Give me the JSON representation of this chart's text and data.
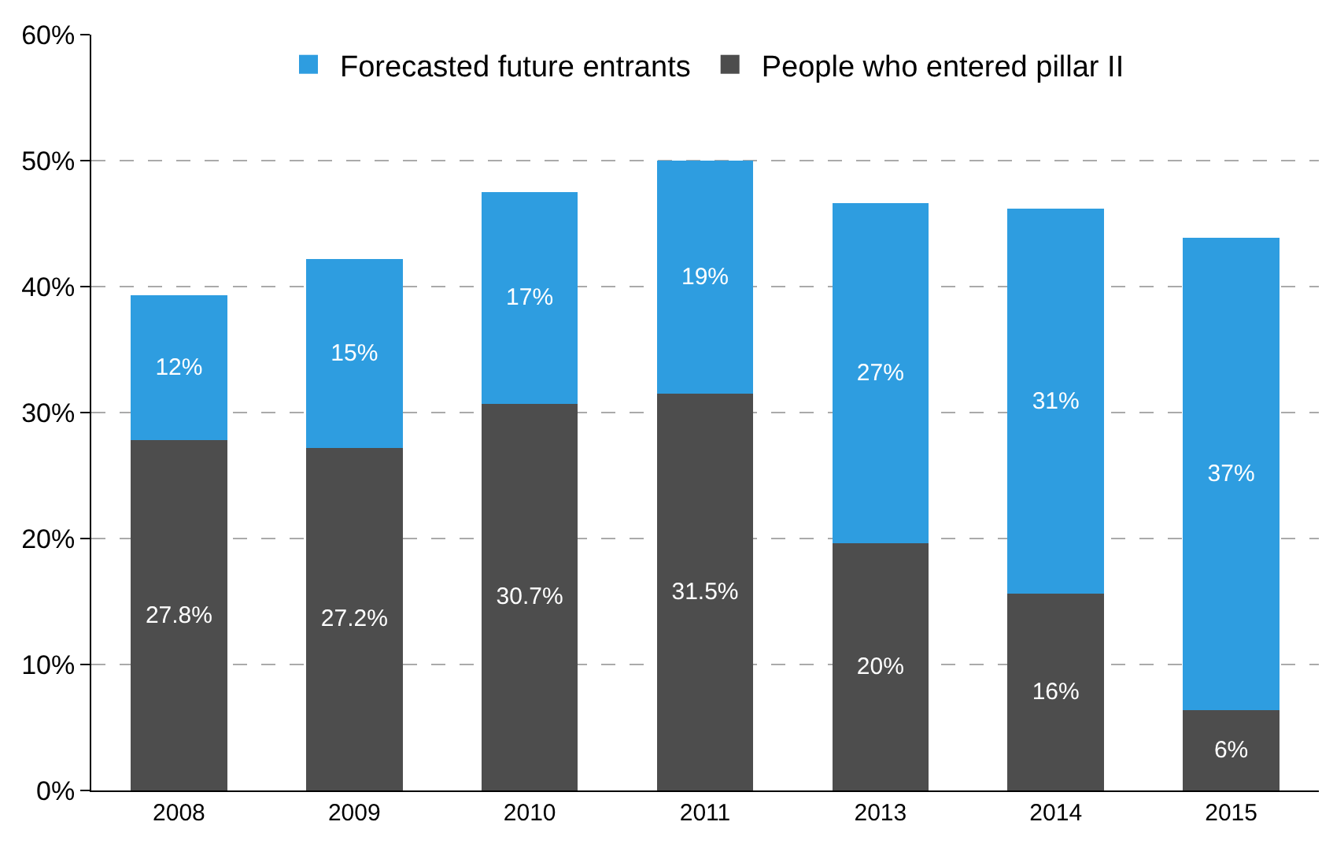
{
  "chart_data": {
    "type": "bar",
    "stacked": true,
    "categories": [
      "2008",
      "2009",
      "2010",
      "2011",
      "2013",
      "2014",
      "2015"
    ],
    "series": [
      {
        "name": "People who entered pillar II",
        "color": "#4d4d4d",
        "values": [
          27.8,
          27.2,
          30.7,
          31.5,
          19.6,
          15.6,
          6.4
        ],
        "value_labels": [
          "27.8%",
          "27.2%",
          "30.7%",
          "31.5%",
          "20%",
          "16%",
          "6%"
        ]
      },
      {
        "name": "Forecasted future entrants",
        "color": "#2e9de0",
        "values": [
          11.5,
          15,
          16.8,
          18.5,
          27,
          30.6,
          37.5
        ],
        "value_labels": [
          "12%",
          "15%",
          "17%",
          "19%",
          "27%",
          "31%",
          "37%"
        ]
      }
    ],
    "ylim": [
      0,
      60
    ],
    "yticks": [
      {
        "value": 0,
        "label": "0%"
      },
      {
        "value": 10,
        "label": "10%"
      },
      {
        "value": 20,
        "label": "20%"
      },
      {
        "value": 30,
        "label": "30%"
      },
      {
        "value": 40,
        "label": "40%"
      },
      {
        "value": 50,
        "label": "50%"
      },
      {
        "value": 60,
        "label": "60%"
      }
    ],
    "grid": "y",
    "legend": "top"
  }
}
